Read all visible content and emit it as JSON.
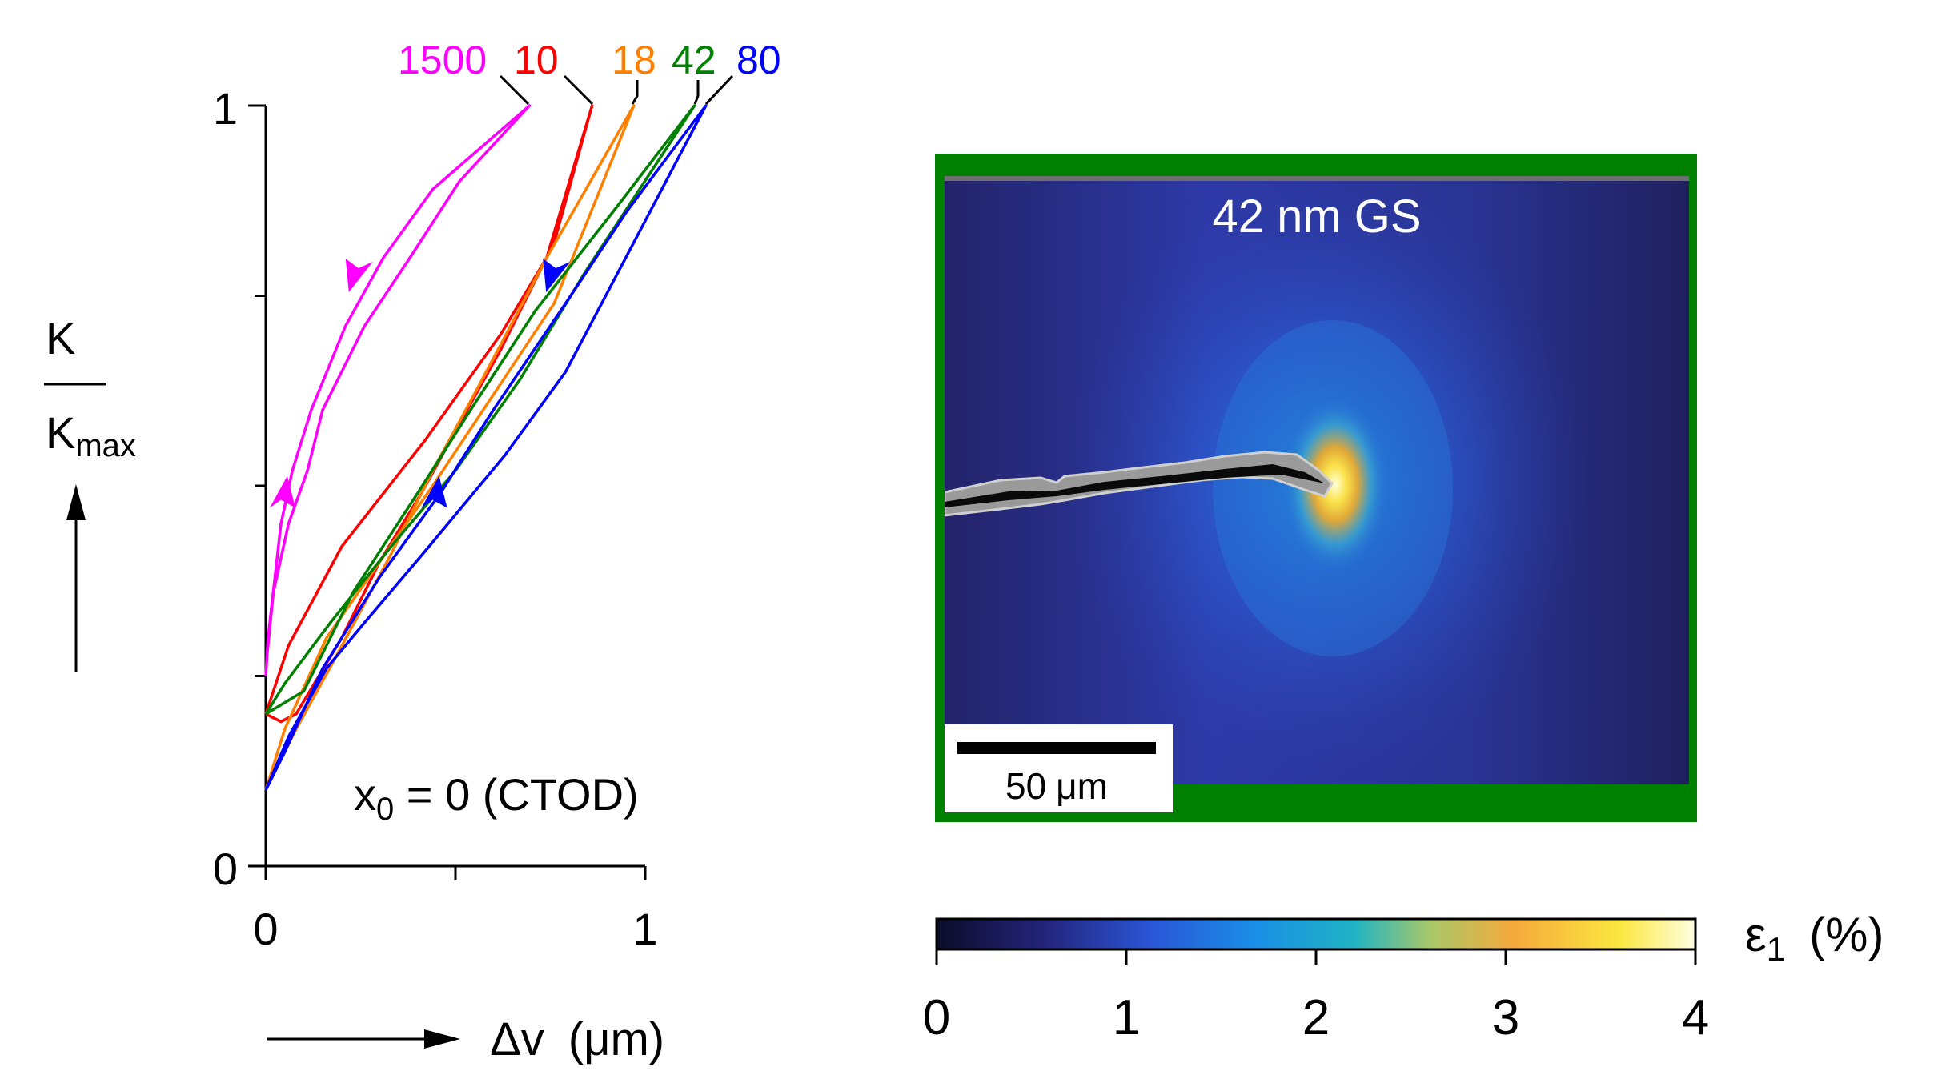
{
  "chart_data": [
    {
      "type": "line",
      "xlabel_symbol": "Δv",
      "xlabel_unit": "(μm)",
      "ylabel_num": "K",
      "ylabel_den_main": "K",
      "ylabel_den_sub": "max",
      "annotation_main": "x",
      "annotation_sub": "0",
      "annotation_rest": " = 0 (CTOD)",
      "xlim": [
        0,
        1
      ],
      "ylim": [
        0,
        1
      ],
      "x_ticks": [
        "0",
        "1"
      ],
      "y_ticks": [
        "0",
        "1"
      ],
      "legend_placement": "top",
      "series": [
        {
          "name": "1500",
          "color": "#ff00ff",
          "x": [
            0,
            0.006,
            0.04,
            0.07,
            0.12,
            0.21,
            0.31,
            0.44,
            0.695,
            0.51,
            0.38,
            0.26,
            0.15,
            0.11,
            0.06,
            0.02,
            0.004,
            0
          ],
          "y": [
            0.25,
            0.3,
            0.45,
            0.52,
            0.6,
            0.71,
            0.8,
            0.89,
            1.0,
            0.9,
            0.8,
            0.71,
            0.6,
            0.52,
            0.45,
            0.36,
            0.28,
            0.25
          ]
        },
        {
          "name": "10",
          "color": "#ff0000",
          "x": [
            0,
            0.06,
            0.2,
            0.42,
            0.62,
            0.74,
            0.86,
            0.76,
            0.62,
            0.52,
            0.41,
            0.3,
            0.2,
            0.08,
            0.04,
            0
          ],
          "y": [
            0.2,
            0.29,
            0.42,
            0.56,
            0.7,
            0.8,
            1.0,
            0.82,
            0.68,
            0.59,
            0.49,
            0.4,
            0.3,
            0.2,
            0.19,
            0.2
          ]
        },
        {
          "name": "18",
          "color": "#ff8000",
          "x": [
            0,
            0.05,
            0.16,
            0.3,
            0.44,
            0.6,
            0.76,
            0.97,
            0.74,
            0.56,
            0.44,
            0.33,
            0.19,
            0.08,
            0
          ],
          "y": [
            0.1,
            0.18,
            0.3,
            0.4,
            0.5,
            0.62,
            0.74,
            1.0,
            0.8,
            0.63,
            0.52,
            0.41,
            0.28,
            0.18,
            0.1
          ]
        },
        {
          "name": "42",
          "color": "#008000",
          "x": [
            0,
            0.05,
            0.17,
            0.33,
            0.5,
            0.67,
            0.84,
            1.13,
            0.93,
            0.71,
            0.54,
            0.4,
            0.23,
            0.1,
            0
          ],
          "y": [
            0.2,
            0.24,
            0.32,
            0.42,
            0.52,
            0.64,
            0.78,
            1.0,
            0.87,
            0.73,
            0.6,
            0.49,
            0.36,
            0.23,
            0.2
          ]
        },
        {
          "name": "80",
          "color": "#0000ff",
          "x": [
            0,
            0.06,
            0.16,
            0.26,
            0.43,
            0.63,
            0.79,
            1.16,
            0.95,
            0.79,
            0.6,
            0.46,
            0.3,
            0.15,
            0.05,
            0
          ],
          "y": [
            0.1,
            0.17,
            0.26,
            0.32,
            0.42,
            0.54,
            0.65,
            1.0,
            0.86,
            0.74,
            0.6,
            0.49,
            0.38,
            0.26,
            0.15,
            0.1
          ]
        }
      ]
    },
    {
      "type": "heatmap",
      "image_label": "42 nm GS",
      "scale_bar_value": "50",
      "scale_bar_unit": "μm",
      "frame_color": "#008000",
      "colorbar_label_symbol": "ε",
      "colorbar_label_sub": "1",
      "colorbar_label_unit": "(%)",
      "colorbar_ticks": [
        "0",
        "1",
        "2",
        "3",
        "4"
      ],
      "colorbar_range": [
        0,
        4
      ],
      "colormap": [
        "#0c0d2a",
        "#23237a",
        "#2b55d6",
        "#1a8fe6",
        "#1fb3c4",
        "#a8c86a",
        "#f5a93c",
        "#fbe740",
        "#ffffe0"
      ]
    }
  ]
}
